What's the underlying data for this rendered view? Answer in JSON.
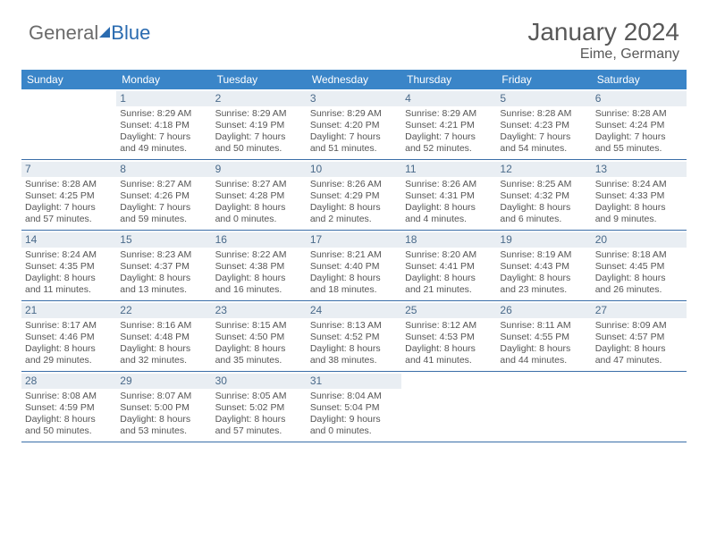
{
  "logo": {
    "part1": "General",
    "part2": "Blue"
  },
  "title": {
    "month": "January 2024",
    "location": "Eime, Germany"
  },
  "colors": {
    "header_bg": "#3a85c8",
    "header_text": "#ffffff",
    "daynum_bg": "#e9eef3",
    "daynum_text": "#4a6a8a",
    "row_border": "#3a6ea8",
    "body_text": "#555555",
    "logo_gray": "#6b6b6b",
    "logo_blue": "#2a6bb0",
    "title_color": "#585858"
  },
  "dow": [
    "Sunday",
    "Monday",
    "Tuesday",
    "Wednesday",
    "Thursday",
    "Friday",
    "Saturday"
  ],
  "weeks": [
    [
      null,
      {
        "n": "1",
        "sr": "8:29 AM",
        "ss": "4:18 PM",
        "dl": "7 hours and 49 minutes."
      },
      {
        "n": "2",
        "sr": "8:29 AM",
        "ss": "4:19 PM",
        "dl": "7 hours and 50 minutes."
      },
      {
        "n": "3",
        "sr": "8:29 AM",
        "ss": "4:20 PM",
        "dl": "7 hours and 51 minutes."
      },
      {
        "n": "4",
        "sr": "8:29 AM",
        "ss": "4:21 PM",
        "dl": "7 hours and 52 minutes."
      },
      {
        "n": "5",
        "sr": "8:28 AM",
        "ss": "4:23 PM",
        "dl": "7 hours and 54 minutes."
      },
      {
        "n": "6",
        "sr": "8:28 AM",
        "ss": "4:24 PM",
        "dl": "7 hours and 55 minutes."
      }
    ],
    [
      {
        "n": "7",
        "sr": "8:28 AM",
        "ss": "4:25 PM",
        "dl": "7 hours and 57 minutes."
      },
      {
        "n": "8",
        "sr": "8:27 AM",
        "ss": "4:26 PM",
        "dl": "7 hours and 59 minutes."
      },
      {
        "n": "9",
        "sr": "8:27 AM",
        "ss": "4:28 PM",
        "dl": "8 hours and 0 minutes."
      },
      {
        "n": "10",
        "sr": "8:26 AM",
        "ss": "4:29 PM",
        "dl": "8 hours and 2 minutes."
      },
      {
        "n": "11",
        "sr": "8:26 AM",
        "ss": "4:31 PM",
        "dl": "8 hours and 4 minutes."
      },
      {
        "n": "12",
        "sr": "8:25 AM",
        "ss": "4:32 PM",
        "dl": "8 hours and 6 minutes."
      },
      {
        "n": "13",
        "sr": "8:24 AM",
        "ss": "4:33 PM",
        "dl": "8 hours and 9 minutes."
      }
    ],
    [
      {
        "n": "14",
        "sr": "8:24 AM",
        "ss": "4:35 PM",
        "dl": "8 hours and 11 minutes."
      },
      {
        "n": "15",
        "sr": "8:23 AM",
        "ss": "4:37 PM",
        "dl": "8 hours and 13 minutes."
      },
      {
        "n": "16",
        "sr": "8:22 AM",
        "ss": "4:38 PM",
        "dl": "8 hours and 16 minutes."
      },
      {
        "n": "17",
        "sr": "8:21 AM",
        "ss": "4:40 PM",
        "dl": "8 hours and 18 minutes."
      },
      {
        "n": "18",
        "sr": "8:20 AM",
        "ss": "4:41 PM",
        "dl": "8 hours and 21 minutes."
      },
      {
        "n": "19",
        "sr": "8:19 AM",
        "ss": "4:43 PM",
        "dl": "8 hours and 23 minutes."
      },
      {
        "n": "20",
        "sr": "8:18 AM",
        "ss": "4:45 PM",
        "dl": "8 hours and 26 minutes."
      }
    ],
    [
      {
        "n": "21",
        "sr": "8:17 AM",
        "ss": "4:46 PM",
        "dl": "8 hours and 29 minutes."
      },
      {
        "n": "22",
        "sr": "8:16 AM",
        "ss": "4:48 PM",
        "dl": "8 hours and 32 minutes."
      },
      {
        "n": "23",
        "sr": "8:15 AM",
        "ss": "4:50 PM",
        "dl": "8 hours and 35 minutes."
      },
      {
        "n": "24",
        "sr": "8:13 AM",
        "ss": "4:52 PM",
        "dl": "8 hours and 38 minutes."
      },
      {
        "n": "25",
        "sr": "8:12 AM",
        "ss": "4:53 PM",
        "dl": "8 hours and 41 minutes."
      },
      {
        "n": "26",
        "sr": "8:11 AM",
        "ss": "4:55 PM",
        "dl": "8 hours and 44 minutes."
      },
      {
        "n": "27",
        "sr": "8:09 AM",
        "ss": "4:57 PM",
        "dl": "8 hours and 47 minutes."
      }
    ],
    [
      {
        "n": "28",
        "sr": "8:08 AM",
        "ss": "4:59 PM",
        "dl": "8 hours and 50 minutes."
      },
      {
        "n": "29",
        "sr": "8:07 AM",
        "ss": "5:00 PM",
        "dl": "8 hours and 53 minutes."
      },
      {
        "n": "30",
        "sr": "8:05 AM",
        "ss": "5:02 PM",
        "dl": "8 hours and 57 minutes."
      },
      {
        "n": "31",
        "sr": "8:04 AM",
        "ss": "5:04 PM",
        "dl": "9 hours and 0 minutes."
      },
      null,
      null,
      null
    ]
  ],
  "labels": {
    "sunrise": "Sunrise: ",
    "sunset": "Sunset: ",
    "daylight": "Daylight: "
  }
}
